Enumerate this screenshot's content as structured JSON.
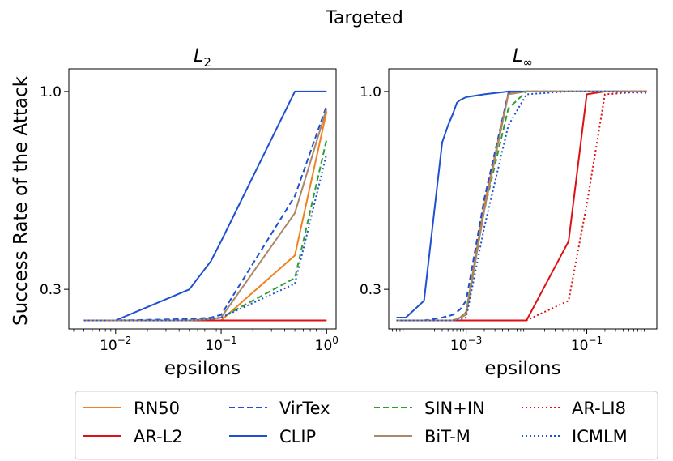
{
  "figure": {
    "suptitle": "Targeted",
    "ylabel": "Success Rate of the Attack"
  },
  "colors": {
    "RN50": "#f08020",
    "AR-L2": "#dd1111",
    "VirTex": "#1f50d0",
    "CLIP": "#1f50d0",
    "SIN+IN": "#2ca02c",
    "BiT-M": "#a9876a",
    "AR-LI8": "#dd1111",
    "ICMLM": "#1f50d0"
  },
  "chart_data": [
    {
      "type": "line",
      "title_base": "L",
      "title_sub": "2",
      "xlabel": "epsilons",
      "xscale": "log",
      "xlim": [
        0.0036,
        1.23
      ],
      "ylim": [
        0.16,
        1.08
      ],
      "xticks": [
        {
          "base": "10",
          "exp": "−2",
          "value": 0.01
        },
        {
          "base": "10",
          "exp": "−1",
          "value": 0.1
        },
        {
          "base": "10",
          "exp": "0",
          "value": 1
        }
      ],
      "yticks": [
        {
          "label": "1.0",
          "value": 1.0
        },
        {
          "label": "0.3",
          "value": 0.3
        }
      ],
      "x": [
        0.005,
        0.01,
        0.05,
        0.08,
        0.1,
        0.5,
        1.0
      ],
      "series": [
        {
          "name": "RN50",
          "values": [
            0.19,
            0.19,
            0.19,
            0.19,
            0.19,
            0.42,
            0.93
          ]
        },
        {
          "name": "AR-L2",
          "values": [
            0.19,
            0.19,
            0.19,
            0.19,
            0.19,
            0.19,
            0.19
          ]
        },
        {
          "name": "VirTex",
          "values": [
            0.19,
            0.19,
            0.195,
            0.2,
            0.21,
            0.63,
            0.95
          ]
        },
        {
          "name": "CLIP",
          "values": [
            0.19,
            0.19,
            0.3,
            0.4,
            0.47,
            1.0,
            1.0
          ]
        },
        {
          "name": "SIN+IN",
          "values": [
            0.19,
            0.19,
            0.19,
            0.195,
            0.2,
            0.34,
            0.83
          ]
        },
        {
          "name": "BiT-M",
          "values": [
            0.19,
            0.19,
            0.19,
            0.195,
            0.2,
            0.57,
            0.94
          ]
        },
        {
          "name": "ICMLM",
          "values": [
            0.19,
            0.19,
            0.19,
            0.195,
            0.2,
            0.32,
            0.78
          ]
        }
      ]
    },
    {
      "type": "line",
      "title_base": "L",
      "title_sub": "∞",
      "xlabel": "epsilons",
      "xscale": "log",
      "xlim": [
        5.2e-05,
        1.45
      ],
      "ylim": [
        0.16,
        1.08
      ],
      "xticks": [
        {
          "base": "10",
          "exp": "−3",
          "value": 0.001
        },
        {
          "base": "10",
          "exp": "−1",
          "value": 0.1
        }
      ],
      "yticks": [
        {
          "label": "1.0",
          "value": 1.0
        },
        {
          "label": "0.3",
          "value": 0.3
        }
      ],
      "x": [
        7e-05,
        0.0001,
        0.0002,
        0.0004,
        0.0005,
        0.0006,
        0.0007,
        0.0008,
        0.001,
        0.002,
        0.005,
        0.01,
        0.05,
        0.1,
        0.2,
        1.0
      ],
      "series": [
        {
          "name": "RN50",
          "values": [
            0.19,
            0.19,
            0.19,
            0.19,
            0.19,
            0.19,
            0.195,
            0.2,
            0.22,
            0.6,
            0.995,
            1.0,
            1.0,
            1.0,
            1.0,
            1.0
          ]
        },
        {
          "name": "AR-L2",
          "values": [
            0.19,
            0.19,
            0.19,
            0.19,
            0.19,
            0.19,
            0.19,
            0.19,
            0.19,
            0.19,
            0.19,
            0.19,
            0.47,
            0.99,
            1.0,
            1.0
          ]
        },
        {
          "name": "VirTex",
          "values": [
            0.19,
            0.19,
            0.19,
            0.2,
            0.205,
            0.21,
            0.22,
            0.23,
            0.26,
            0.62,
            0.995,
            1.0,
            1.0,
            1.0,
            1.0,
            1.0
          ]
        },
        {
          "name": "CLIP",
          "values": [
            0.2,
            0.2,
            0.26,
            0.82,
            0.88,
            0.92,
            0.96,
            0.97,
            0.98,
            0.99,
            1.0,
            1.0,
            1.0,
            1.0,
            1.0,
            1.0
          ]
        },
        {
          "name": "SIN+IN",
          "values": [
            0.19,
            0.19,
            0.19,
            0.19,
            0.19,
            0.19,
            0.195,
            0.2,
            0.22,
            0.58,
            0.94,
            1.0,
            1.0,
            1.0,
            1.0,
            1.0
          ]
        },
        {
          "name": "BiT-M",
          "values": [
            0.19,
            0.19,
            0.19,
            0.19,
            0.19,
            0.19,
            0.195,
            0.2,
            0.21,
            0.58,
            0.99,
            1.0,
            1.0,
            1.0,
            1.0,
            1.0
          ]
        },
        {
          "name": "AR-LI8",
          "values": [
            0.19,
            0.19,
            0.19,
            0.19,
            0.19,
            0.19,
            0.19,
            0.19,
            0.19,
            0.19,
            0.19,
            0.19,
            0.26,
            0.6,
            0.99,
            1.0
          ]
        },
        {
          "name": "ICMLM",
          "values": [
            0.19,
            0.19,
            0.19,
            0.19,
            0.19,
            0.19,
            0.19,
            0.195,
            0.2,
            0.52,
            0.88,
            0.99,
            1.0,
            1.0,
            1.0,
            0.995
          ]
        }
      ]
    }
  ],
  "legend": {
    "placement": "bottom",
    "entries": [
      {
        "name": "RN50",
        "style": "solid"
      },
      {
        "name": "AR-L2",
        "style": "solid"
      },
      {
        "name": "VirTex",
        "style": "dashed"
      },
      {
        "name": "CLIP",
        "style": "solid"
      },
      {
        "name": "SIN+IN",
        "style": "dashed"
      },
      {
        "name": "BiT-M",
        "style": "solid"
      },
      {
        "name": "AR-LI8",
        "style": "dotted"
      },
      {
        "name": "ICMLM",
        "style": "dotted"
      }
    ]
  }
}
